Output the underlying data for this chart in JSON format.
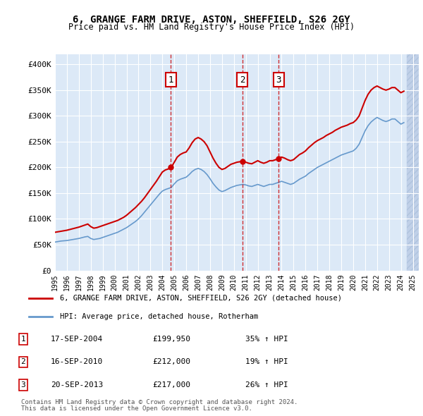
{
  "title": "6, GRANGE FARM DRIVE, ASTON, SHEFFIELD, S26 2GY",
  "subtitle": "Price paid vs. HM Land Registry's House Price Index (HPI)",
  "legend_label_red": "6, GRANGE FARM DRIVE, ASTON, SHEFFIELD, S26 2GY (detached house)",
  "legend_label_blue": "HPI: Average price, detached house, Rotherham",
  "footer1": "Contains HM Land Registry data © Crown copyright and database right 2024.",
  "footer2": "This data is licensed under the Open Government Licence v3.0.",
  "transactions": [
    {
      "num": 1,
      "date": "17-SEP-2004",
      "price": 199950,
      "hpi_pct": "35%",
      "year": 2004.72
    },
    {
      "num": 2,
      "date": "16-SEP-2010",
      "price": 212000,
      "hpi_pct": "19%",
      "year": 2010.72
    },
    {
      "num": 3,
      "date": "20-SEP-2013",
      "price": 217000,
      "hpi_pct": "26%",
      "year": 2013.75
    }
  ],
  "ylim": [
    0,
    420000
  ],
  "xlim_start": 1995.0,
  "xlim_end": 2025.5,
  "background_color": "#dce9f7",
  "hatch_color": "#c0d0e8",
  "red_color": "#cc0000",
  "blue_color": "#6699cc",
  "grid_color": "#ffffff",
  "yticks": [
    0,
    50000,
    100000,
    150000,
    200000,
    250000,
    300000,
    350000,
    400000
  ],
  "ytick_labels": [
    "£0",
    "£50K",
    "£100K",
    "£150K",
    "£200K",
    "£250K",
    "£300K",
    "£350K",
    "£400K"
  ],
  "xticks": [
    1995,
    1996,
    1997,
    1998,
    1999,
    2000,
    2001,
    2002,
    2003,
    2004,
    2005,
    2006,
    2007,
    2008,
    2009,
    2010,
    2011,
    2012,
    2013,
    2014,
    2015,
    2016,
    2017,
    2018,
    2019,
    2020,
    2021,
    2022,
    2023,
    2024,
    2025
  ],
  "red_series_x": [
    1995.0,
    1995.25,
    1995.5,
    1995.75,
    1996.0,
    1996.25,
    1996.5,
    1996.75,
    1997.0,
    1997.25,
    1997.5,
    1997.75,
    1998.0,
    1998.25,
    1998.5,
    1998.75,
    1999.0,
    1999.25,
    1999.5,
    1999.75,
    2000.0,
    2000.25,
    2000.5,
    2000.75,
    2001.0,
    2001.25,
    2001.5,
    2001.75,
    2002.0,
    2002.25,
    2002.5,
    2002.75,
    2003.0,
    2003.25,
    2003.5,
    2003.75,
    2004.0,
    2004.25,
    2004.5,
    2004.75,
    2005.0,
    2005.25,
    2005.5,
    2005.75,
    2006.0,
    2006.25,
    2006.5,
    2006.75,
    2007.0,
    2007.25,
    2007.5,
    2007.75,
    2008.0,
    2008.25,
    2008.5,
    2008.75,
    2009.0,
    2009.25,
    2009.5,
    2009.75,
    2010.0,
    2010.25,
    2010.5,
    2010.75,
    2011.0,
    2011.25,
    2011.5,
    2011.75,
    2012.0,
    2012.25,
    2012.5,
    2012.75,
    2013.0,
    2013.25,
    2013.5,
    2013.75,
    2014.0,
    2014.25,
    2014.5,
    2014.75,
    2015.0,
    2015.25,
    2015.5,
    2015.75,
    2016.0,
    2016.25,
    2016.5,
    2016.75,
    2017.0,
    2017.25,
    2017.5,
    2017.75,
    2018.0,
    2018.25,
    2018.5,
    2018.75,
    2019.0,
    2019.25,
    2019.5,
    2019.75,
    2020.0,
    2020.25,
    2020.5,
    2020.75,
    2021.0,
    2021.25,
    2021.5,
    2021.75,
    2022.0,
    2022.25,
    2022.5,
    2022.75,
    2023.0,
    2023.25,
    2023.5,
    2023.75,
    2024.0,
    2024.25
  ],
  "red_series_y": [
    74000,
    75000,
    76000,
    77000,
    78000,
    79500,
    81000,
    82500,
    84000,
    86000,
    88000,
    90000,
    85000,
    82000,
    83000,
    85000,
    87000,
    89000,
    91000,
    93000,
    95000,
    97000,
    100000,
    103000,
    107000,
    112000,
    117000,
    122000,
    128000,
    134000,
    141000,
    149000,
    157000,
    165000,
    173000,
    182000,
    191000,
    195000,
    197000,
    199950,
    210000,
    220000,
    225000,
    228000,
    230000,
    238000,
    248000,
    255000,
    258000,
    255000,
    250000,
    242000,
    230000,
    218000,
    208000,
    200000,
    196000,
    198000,
    202000,
    206000,
    208000,
    210000,
    211000,
    212000,
    210000,
    208000,
    207000,
    210000,
    213000,
    210000,
    208000,
    210000,
    213000,
    213000,
    215000,
    217000,
    220000,
    218000,
    215000,
    213000,
    215000,
    220000,
    225000,
    228000,
    232000,
    238000,
    243000,
    248000,
    252000,
    255000,
    258000,
    262000,
    265000,
    268000,
    272000,
    275000,
    278000,
    280000,
    282000,
    285000,
    287000,
    292000,
    300000,
    315000,
    330000,
    342000,
    350000,
    355000,
    358000,
    355000,
    352000,
    350000,
    352000,
    355000,
    355000,
    350000,
    345000,
    348000
  ],
  "blue_series_x": [
    1995.0,
    1995.25,
    1995.5,
    1995.75,
    1996.0,
    1996.25,
    1996.5,
    1996.75,
    1997.0,
    1997.25,
    1997.5,
    1997.75,
    1998.0,
    1998.25,
    1998.5,
    1998.75,
    1999.0,
    1999.25,
    1999.5,
    1999.75,
    2000.0,
    2000.25,
    2000.5,
    2000.75,
    2001.0,
    2001.25,
    2001.5,
    2001.75,
    2002.0,
    2002.25,
    2002.5,
    2002.75,
    2003.0,
    2003.25,
    2003.5,
    2003.75,
    2004.0,
    2004.25,
    2004.5,
    2004.75,
    2005.0,
    2005.25,
    2005.5,
    2005.75,
    2006.0,
    2006.25,
    2006.5,
    2006.75,
    2007.0,
    2007.25,
    2007.5,
    2007.75,
    2008.0,
    2008.25,
    2008.5,
    2008.75,
    2009.0,
    2009.25,
    2009.5,
    2009.75,
    2010.0,
    2010.25,
    2010.5,
    2010.75,
    2011.0,
    2011.25,
    2011.5,
    2011.75,
    2012.0,
    2012.25,
    2012.5,
    2012.75,
    2013.0,
    2013.25,
    2013.5,
    2013.75,
    2014.0,
    2014.25,
    2014.5,
    2014.75,
    2015.0,
    2015.25,
    2015.5,
    2015.75,
    2016.0,
    2016.25,
    2016.5,
    2016.75,
    2017.0,
    2017.25,
    2017.5,
    2017.75,
    2018.0,
    2018.25,
    2018.5,
    2018.75,
    2019.0,
    2019.25,
    2019.5,
    2019.75,
    2020.0,
    2020.25,
    2020.5,
    2020.75,
    2021.0,
    2021.25,
    2021.5,
    2021.75,
    2022.0,
    2022.25,
    2022.5,
    2022.75,
    2023.0,
    2023.25,
    2023.5,
    2023.75,
    2024.0,
    2024.25
  ],
  "blue_series_y": [
    55000,
    56000,
    57000,
    57500,
    58000,
    59000,
    60000,
    61000,
    62000,
    63500,
    65000,
    66000,
    62000,
    60000,
    61000,
    62000,
    64000,
    66000,
    68000,
    70000,
    72000,
    74000,
    77000,
    80000,
    83000,
    87000,
    91000,
    95000,
    100000,
    106000,
    113000,
    120000,
    127000,
    134000,
    141000,
    148000,
    154000,
    157000,
    159000,
    161000,
    168000,
    174000,
    177000,
    179000,
    181000,
    186000,
    192000,
    196000,
    198000,
    196000,
    192000,
    186000,
    178000,
    169000,
    162000,
    156000,
    153000,
    155000,
    158000,
    161000,
    163000,
    165000,
    166000,
    167000,
    166000,
    164000,
    163000,
    165000,
    167000,
    165000,
    163000,
    165000,
    167000,
    167000,
    169000,
    171000,
    173000,
    171000,
    169000,
    167000,
    169000,
    173000,
    177000,
    180000,
    183000,
    188000,
    192000,
    196000,
    200000,
    203000,
    206000,
    209000,
    212000,
    215000,
    218000,
    221000,
    224000,
    226000,
    228000,
    230000,
    232000,
    237000,
    245000,
    258000,
    271000,
    281000,
    288000,
    293000,
    297000,
    294000,
    291000,
    289000,
    291000,
    294000,
    294000,
    289000,
    284000,
    287000
  ]
}
